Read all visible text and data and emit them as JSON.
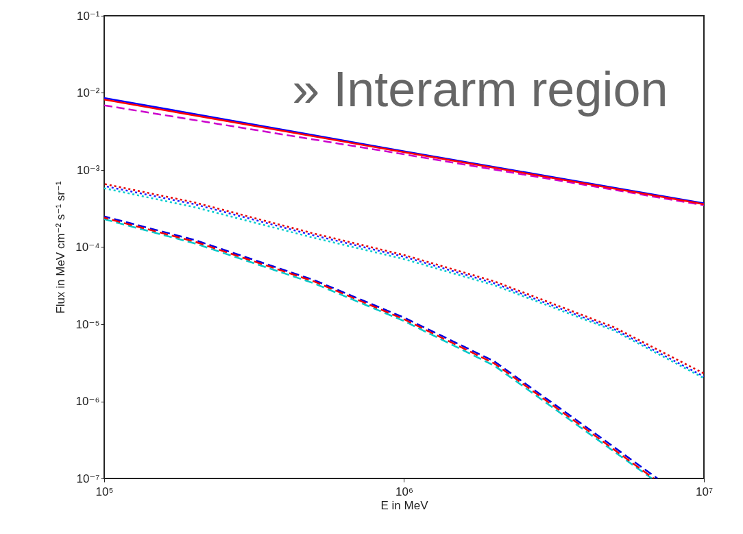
{
  "chart_data": {
    "type": "line",
    "title": "» Interarm region",
    "xlabel": "E in MeV",
    "ylabel": "Flux in MeV cm⁻² s⁻¹ sr⁻¹",
    "log": "xy",
    "xlim": [
      100000,
      10000000
    ],
    "xticks": [
      {
        "value": 100000,
        "label": "10⁵"
      },
      {
        "value": 1000000,
        "label": "10⁶"
      },
      {
        "value": 10000000,
        "label": "10⁷"
      }
    ],
    "ylim": [
      1e-07,
      0.1
    ],
    "yticks": [
      {
        "value": 1e-07,
        "label": "10⁻⁷"
      },
      {
        "value": 1e-06,
        "label": "10⁻⁶"
      },
      {
        "value": 1e-05,
        "label": "10⁻⁵"
      },
      {
        "value": 0.0001,
        "label": "10⁻⁴"
      },
      {
        "value": 0.001,
        "label": "10⁻³"
      },
      {
        "value": 0.01,
        "label": "10⁻²"
      },
      {
        "value": 0.1,
        "label": "10⁻¹"
      }
    ],
    "series": [
      {
        "color": "#cc00cc",
        "line_style": "dashed",
        "x": [
          100000,
          1000000,
          10000000
        ],
        "values": [
          0.0069,
          0.0016,
          0.00035
        ]
      },
      {
        "color": "#0000ff",
        "line_style": "solid",
        "x": [
          100000,
          1000000,
          10000000
        ],
        "values": [
          0.0086,
          0.00175,
          0.00037
        ]
      },
      {
        "color": "#ff0000",
        "line_style": "solid",
        "x": [
          100000,
          1000000,
          10000000
        ],
        "values": [
          0.0082,
          0.0017,
          0.00036
        ]
      },
      {
        "color": "#00cccc",
        "line_style": "dotted",
        "x": [
          100000,
          200000,
          500000,
          1000000,
          2000000,
          5000000,
          10000000
        ],
        "values": [
          0.00058,
          0.00033,
          0.000132,
          7e-05,
          3.2e-05,
          8.3e-06,
          2e-06
        ]
      },
      {
        "color": "#2020ff",
        "line_style": "dotted",
        "x": [
          100000,
          200000,
          500000,
          1000000,
          2000000,
          5000000,
          10000000
        ],
        "values": [
          0.00062,
          0.00036,
          0.000142,
          7.5e-05,
          3.4e-05,
          8.7e-06,
          2.1e-06
        ]
      },
      {
        "color": "#e60000",
        "line_style": "dotted",
        "x": [
          100000,
          200000,
          500000,
          1000000,
          2000000,
          5000000,
          10000000
        ],
        "values": [
          0.00066,
          0.00038,
          0.00015,
          7.9e-05,
          3.6e-05,
          9.2e-06,
          2.3e-06
        ]
      },
      {
        "color": "#00c8c8",
        "line_style": "dashed",
        "x": [
          100000,
          200000,
          500000,
          1000000,
          2000000,
          4000000,
          6700000
        ],
        "values": [
          0.00023,
          0.000112,
          3.4e-05,
          1.1e-05,
          2.9e-06,
          4.2e-07,
          1e-07
        ]
      },
      {
        "color": "#0000e0",
        "line_style": "dashed",
        "x": [
          100000,
          200000,
          500000,
          1000000,
          2000000,
          4000000,
          7000000
        ],
        "values": [
          0.00025,
          0.000124,
          3.75e-05,
          1.22e-05,
          3.3e-06,
          4.8e-07,
          1e-07
        ]
      },
      {
        "color": "#f00000",
        "line_style": "dashed",
        "x": [
          100000,
          200000,
          500000,
          1000000,
          2000000,
          4000000,
          6800000
        ],
        "values": [
          0.00024,
          0.000118,
          3.6e-05,
          1.16e-05,
          3.1e-06,
          4.5e-07,
          1e-07
        ]
      }
    ]
  }
}
